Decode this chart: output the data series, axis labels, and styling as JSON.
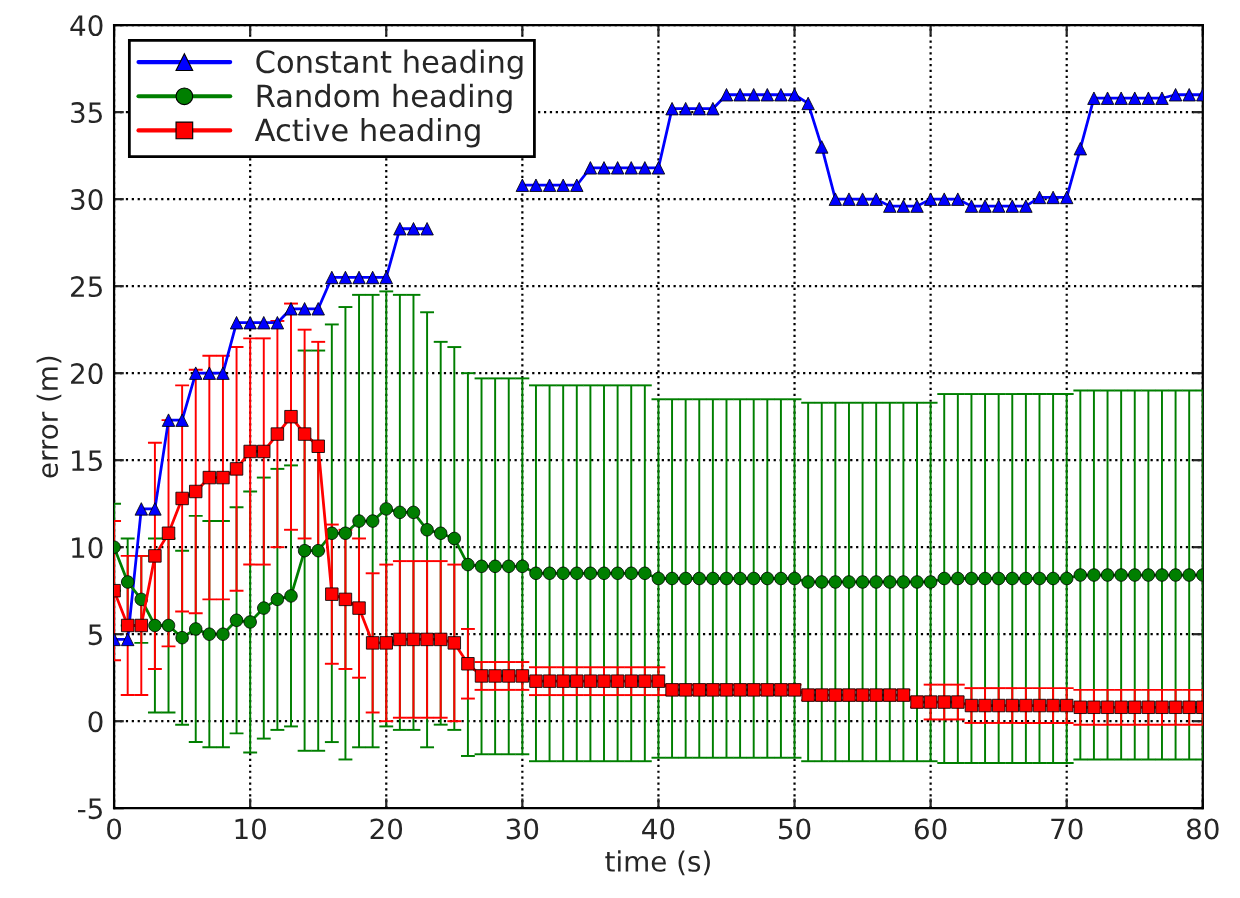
{
  "chart_data": {
    "type": "line",
    "xlabel": "time (s)",
    "ylabel": "error (m)",
    "x": [
      0,
      1,
      2,
      3,
      4,
      5,
      6,
      7,
      8,
      9,
      10,
      11,
      12,
      13,
      14,
      15,
      16,
      17,
      18,
      19,
      20,
      21,
      22,
      23,
      24,
      25,
      26,
      27,
      28,
      29,
      30,
      31,
      32,
      33,
      34,
      35,
      36,
      37,
      38,
      39,
      40,
      41,
      42,
      43,
      44,
      45,
      46,
      47,
      48,
      49,
      50,
      51,
      52,
      53,
      54,
      55,
      56,
      57,
      58,
      59,
      60,
      61,
      62,
      63,
      64,
      65,
      66,
      67,
      68,
      69,
      70,
      71,
      72,
      73,
      74,
      75,
      76,
      77,
      78,
      79,
      80
    ],
    "series": [
      {
        "name": "Constant heading",
        "color": "#0000ff",
        "marker": "triangle",
        "values": [
          4.7,
          4.7,
          12.2,
          12.2,
          17.3,
          17.3,
          20,
          20,
          20,
          22.9,
          22.9,
          22.9,
          22.9,
          23.7,
          23.7,
          23.7,
          25.5,
          25.5,
          25.5,
          25.5,
          25.5,
          28.3,
          28.3,
          28.3,
          null,
          null,
          null,
          null,
          null,
          null,
          30.8,
          30.8,
          30.8,
          30.8,
          30.8,
          31.8,
          31.8,
          31.8,
          31.8,
          31.8,
          31.8,
          35.2,
          35.2,
          35.2,
          35.2,
          36,
          36,
          36,
          36,
          36,
          36,
          35.5,
          33,
          30,
          30,
          30,
          30,
          29.6,
          29.6,
          29.6,
          30,
          30,
          30,
          29.6,
          29.6,
          29.6,
          29.6,
          29.6,
          30.1,
          30.1,
          30.1,
          32.9,
          35.8,
          35.8,
          35.8,
          35.8,
          35.8,
          35.8,
          36,
          36,
          36
        ]
      },
      {
        "name": "Random heading",
        "color": "#007f00",
        "marker": "circle",
        "values": [
          10,
          8,
          7,
          5.5,
          5.5,
          4.8,
          5.3,
          5,
          5,
          5.8,
          5.7,
          6.5,
          7,
          7.2,
          9.8,
          9.8,
          10.8,
          10.8,
          11.5,
          11.5,
          12.2,
          12,
          12,
          11,
          10.8,
          10.5,
          9,
          8.9,
          8.9,
          8.9,
          8.9,
          8.5,
          8.5,
          8.5,
          8.5,
          8.5,
          8.5,
          8.5,
          8.5,
          8.5,
          8.2,
          8.2,
          8.2,
          8.2,
          8.2,
          8.2,
          8.2,
          8.2,
          8.2,
          8.2,
          8.2,
          8,
          8,
          8,
          8,
          8,
          8,
          8,
          8,
          8,
          8,
          8.2,
          8.2,
          8.2,
          8.2,
          8.2,
          8.2,
          8.2,
          8.2,
          8.2,
          8.2,
          8.4,
          8.4,
          8.4,
          8.4,
          8.4,
          8.4,
          8.4,
          8.4,
          8.4,
          8.4
        ],
        "errors": [
          2.5,
          2.5,
          2.5,
          5,
          5,
          5,
          6.5,
          6.5,
          6.5,
          6.5,
          7.5,
          7.5,
          7.5,
          7.5,
          11.5,
          11.5,
          12,
          13,
          13,
          13,
          12.5,
          12.5,
          12.5,
          12.5,
          11,
          11,
          11,
          10.8,
          10.8,
          10.8,
          10.8,
          10.8,
          10.8,
          10.8,
          10.8,
          10.8,
          10.8,
          10.8,
          10.8,
          10.8,
          10.3,
          10.3,
          10.3,
          10.3,
          10.3,
          10.3,
          10.3,
          10.3,
          10.3,
          10.3,
          10.3,
          10.3,
          10.3,
          10.3,
          10.3,
          10.3,
          10.3,
          10.3,
          10.3,
          10.3,
          10.3,
          10.6,
          10.6,
          10.6,
          10.6,
          10.6,
          10.6,
          10.6,
          10.6,
          10.6,
          10.6,
          10.6,
          10.6,
          10.6,
          10.6,
          10.6,
          10.6,
          10.6,
          10.6,
          10.6,
          10.6
        ]
      },
      {
        "name": "Active heading",
        "color": "#ff0000",
        "marker": "square",
        "values": [
          7.5,
          5.5,
          5.5,
          9.5,
          10.8,
          12.8,
          13.2,
          14,
          14,
          14.5,
          15.5,
          15.5,
          16.5,
          17.5,
          16.5,
          15.8,
          7.3,
          7,
          6.5,
          4.5,
          4.5,
          4.7,
          4.7,
          4.7,
          4.7,
          4.5,
          3.3,
          2.6,
          2.6,
          2.6,
          2.6,
          2.3,
          2.3,
          2.3,
          2.3,
          2.3,
          2.3,
          2.3,
          2.3,
          2.3,
          2.3,
          1.8,
          1.8,
          1.8,
          1.8,
          1.8,
          1.8,
          1.8,
          1.8,
          1.8,
          1.8,
          1.5,
          1.5,
          1.5,
          1.5,
          1.5,
          1.5,
          1.5,
          1.5,
          1.1,
          1.1,
          1.1,
          1.1,
          0.9,
          0.9,
          0.9,
          0.9,
          0.9,
          0.9,
          0.9,
          0.9,
          0.8,
          0.8,
          0.8,
          0.8,
          0.8,
          0.8,
          0.8,
          0.8,
          0.8,
          0.8
        ],
        "errors": [
          4,
          4,
          4,
          6.5,
          6.5,
          6.5,
          7,
          7,
          7,
          7,
          6.5,
          6.5,
          6.5,
          6.5,
          6,
          6,
          4,
          4,
          4,
          4,
          4.5,
          4.5,
          4.5,
          4.5,
          4.5,
          4.5,
          2,
          0.8,
          0.8,
          0.8,
          0.8,
          0.8,
          0.8,
          0.8,
          0.8,
          0.8,
          0.8,
          0.8,
          0.8,
          0.8,
          0.8,
          0.3,
          0.3,
          0.3,
          0.3,
          0.3,
          0.3,
          0.3,
          0.3,
          0.3,
          0.3,
          0.3,
          0.3,
          0.3,
          0.3,
          0.3,
          0.3,
          0.3,
          0.3,
          0.3,
          1,
          1,
          1,
          1,
          1,
          1,
          1,
          1,
          1,
          1,
          1,
          1,
          1,
          1,
          1,
          1,
          1,
          1,
          1,
          1,
          1
        ]
      }
    ],
    "xlim": [
      0,
      80
    ],
    "ylim": [
      -5,
      40
    ],
    "xticks": [
      0,
      10,
      20,
      30,
      40,
      50,
      60,
      70,
      80
    ],
    "yticks": [
      -5,
      0,
      5,
      10,
      15,
      20,
      25,
      30,
      35,
      40
    ],
    "grid": true,
    "legend": "top left"
  }
}
